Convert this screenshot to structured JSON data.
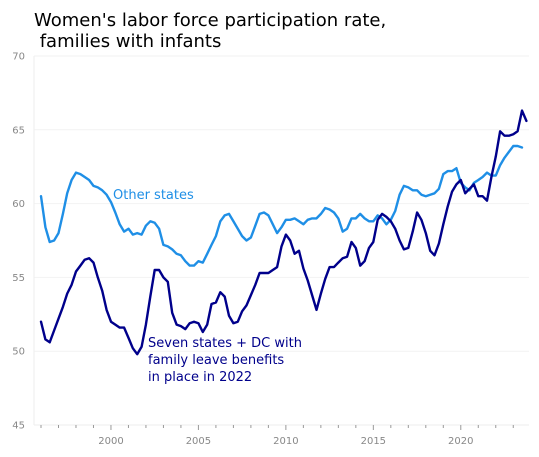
{
  "chart_data": {
    "type": "line",
    "title_lines": [
      "Women's labor force participation rate,",
      " families with infants"
    ],
    "xlabel": "",
    "ylabel": "",
    "xlim": [
      1995.6,
      2023.9
    ],
    "ylim": [
      45,
      70
    ],
    "y_ticks": [
      45,
      50,
      55,
      60,
      65,
      70
    ],
    "x_ticks": [
      2000,
      2005,
      2010,
      2015,
      2020
    ],
    "grid": true,
    "legend": "none",
    "series": [
      {
        "name": "Other states",
        "label": "Other states",
        "color": "#1f8fe6",
        "points": [
          [
            1996.0,
            60.5
          ],
          [
            1996.25,
            58.4
          ],
          [
            1996.5,
            57.4
          ],
          [
            1996.75,
            57.5
          ],
          [
            1997.0,
            58.0
          ],
          [
            1997.25,
            59.3
          ],
          [
            1997.5,
            60.7
          ],
          [
            1997.75,
            61.6
          ],
          [
            1998.0,
            62.1
          ],
          [
            1998.25,
            62.0
          ],
          [
            1998.5,
            61.8
          ],
          [
            1998.75,
            61.6
          ],
          [
            1999.0,
            61.2
          ],
          [
            1999.25,
            61.1
          ],
          [
            1999.5,
            60.9
          ],
          [
            1999.75,
            60.6
          ],
          [
            2000.0,
            60.1
          ],
          [
            2000.25,
            59.4
          ],
          [
            2000.5,
            58.6
          ],
          [
            2000.75,
            58.1
          ],
          [
            2001.0,
            58.3
          ],
          [
            2001.25,
            57.9
          ],
          [
            2001.5,
            58.0
          ],
          [
            2001.75,
            57.9
          ],
          [
            2002.0,
            58.5
          ],
          [
            2002.25,
            58.8
          ],
          [
            2002.5,
            58.7
          ],
          [
            2002.75,
            58.3
          ],
          [
            2003.0,
            57.2
          ],
          [
            2003.25,
            57.1
          ],
          [
            2003.5,
            56.9
          ],
          [
            2003.75,
            56.6
          ],
          [
            2004.0,
            56.5
          ],
          [
            2004.25,
            56.1
          ],
          [
            2004.5,
            55.8
          ],
          [
            2004.75,
            55.8
          ],
          [
            2005.0,
            56.1
          ],
          [
            2005.25,
            56.0
          ],
          [
            2005.5,
            56.6
          ],
          [
            2005.75,
            57.2
          ],
          [
            2006.0,
            57.8
          ],
          [
            2006.25,
            58.8
          ],
          [
            2006.5,
            59.2
          ],
          [
            2006.75,
            59.3
          ],
          [
            2007.0,
            58.8
          ],
          [
            2007.25,
            58.3
          ],
          [
            2007.5,
            57.8
          ],
          [
            2007.75,
            57.5
          ],
          [
            2008.0,
            57.7
          ],
          [
            2008.25,
            58.5
          ],
          [
            2008.5,
            59.3
          ],
          [
            2008.75,
            59.4
          ],
          [
            2009.0,
            59.2
          ],
          [
            2009.25,
            58.6
          ],
          [
            2009.5,
            58.0
          ],
          [
            2009.75,
            58.4
          ],
          [
            2010.0,
            58.9
          ],
          [
            2010.25,
            58.9
          ],
          [
            2010.5,
            59.0
          ],
          [
            2010.75,
            58.8
          ],
          [
            2011.0,
            58.6
          ],
          [
            2011.25,
            58.9
          ],
          [
            2011.5,
            59.0
          ],
          [
            2011.75,
            59.0
          ],
          [
            2012.0,
            59.3
          ],
          [
            2012.25,
            59.7
          ],
          [
            2012.5,
            59.6
          ],
          [
            2012.75,
            59.4
          ],
          [
            2013.0,
            59.0
          ],
          [
            2013.25,
            58.1
          ],
          [
            2013.5,
            58.3
          ],
          [
            2013.75,
            59.0
          ],
          [
            2014.0,
            59.0
          ],
          [
            2014.25,
            59.3
          ],
          [
            2014.5,
            59.0
          ],
          [
            2014.75,
            58.8
          ],
          [
            2015.0,
            58.8
          ],
          [
            2015.25,
            59.2
          ],
          [
            2015.5,
            59.0
          ],
          [
            2015.75,
            58.6
          ],
          [
            2016.0,
            58.9
          ],
          [
            2016.25,
            59.5
          ],
          [
            2016.5,
            60.6
          ],
          [
            2016.75,
            61.2
          ],
          [
            2017.0,
            61.1
          ],
          [
            2017.25,
            60.9
          ],
          [
            2017.5,
            60.9
          ],
          [
            2017.75,
            60.6
          ],
          [
            2018.0,
            60.5
          ],
          [
            2018.25,
            60.6
          ],
          [
            2018.5,
            60.7
          ],
          [
            2018.75,
            61.0
          ],
          [
            2019.0,
            62.0
          ],
          [
            2019.25,
            62.2
          ],
          [
            2019.5,
            62.2
          ],
          [
            2019.75,
            62.4
          ],
          [
            2020.0,
            61.4
          ],
          [
            2020.25,
            61.1
          ],
          [
            2020.5,
            60.9
          ],
          [
            2020.75,
            61.4
          ],
          [
            2021.0,
            61.6
          ],
          [
            2021.25,
            61.8
          ],
          [
            2021.5,
            62.1
          ],
          [
            2021.75,
            61.9
          ],
          [
            2022.0,
            61.9
          ],
          [
            2022.25,
            62.6
          ],
          [
            2022.5,
            63.1
          ],
          [
            2022.75,
            63.5
          ],
          [
            2023.0,
            63.9
          ],
          [
            2023.25,
            63.9
          ],
          [
            2023.5,
            63.8
          ]
        ]
      },
      {
        "name": "Seven states + DC with family leave benefits in place in 2022",
        "label_lines": [
          "Seven states + DC with",
          "family leave benefits",
          "in place in 2022"
        ],
        "color": "#00008b",
        "points": [
          [
            1996.0,
            52.0
          ],
          [
            1996.25,
            50.8
          ],
          [
            1996.5,
            50.6
          ],
          [
            1996.75,
            51.4
          ],
          [
            1997.0,
            52.2
          ],
          [
            1997.25,
            53.0
          ],
          [
            1997.5,
            53.9
          ],
          [
            1997.75,
            54.5
          ],
          [
            1998.0,
            55.4
          ],
          [
            1998.25,
            55.8
          ],
          [
            1998.5,
            56.2
          ],
          [
            1998.75,
            56.3
          ],
          [
            1999.0,
            56.0
          ],
          [
            1999.25,
            55.0
          ],
          [
            1999.5,
            54.1
          ],
          [
            1999.75,
            52.8
          ],
          [
            2000.0,
            52.0
          ],
          [
            2000.25,
            51.8
          ],
          [
            2000.5,
            51.6
          ],
          [
            2000.75,
            51.6
          ],
          [
            2001.0,
            50.9
          ],
          [
            2001.25,
            50.2
          ],
          [
            2001.5,
            49.8
          ],
          [
            2001.75,
            50.3
          ],
          [
            2002.0,
            51.8
          ],
          [
            2002.25,
            53.7
          ],
          [
            2002.5,
            55.5
          ],
          [
            2002.75,
            55.5
          ],
          [
            2003.0,
            55.0
          ],
          [
            2003.25,
            54.7
          ],
          [
            2003.5,
            52.6
          ],
          [
            2003.75,
            51.8
          ],
          [
            2004.0,
            51.7
          ],
          [
            2004.25,
            51.5
          ],
          [
            2004.5,
            51.9
          ],
          [
            2004.75,
            52.0
          ],
          [
            2005.0,
            51.9
          ],
          [
            2005.25,
            51.3
          ],
          [
            2005.5,
            51.8
          ],
          [
            2005.75,
            53.2
          ],
          [
            2006.0,
            53.3
          ],
          [
            2006.25,
            54.0
          ],
          [
            2006.5,
            53.7
          ],
          [
            2006.75,
            52.4
          ],
          [
            2007.0,
            51.9
          ],
          [
            2007.25,
            52.0
          ],
          [
            2007.5,
            52.7
          ],
          [
            2007.75,
            53.1
          ],
          [
            2008.0,
            53.8
          ],
          [
            2008.25,
            54.5
          ],
          [
            2008.5,
            55.3
          ],
          [
            2008.75,
            55.3
          ],
          [
            2009.0,
            55.3
          ],
          [
            2009.25,
            55.5
          ],
          [
            2009.5,
            55.7
          ],
          [
            2009.75,
            57.1
          ],
          [
            2010.0,
            57.9
          ],
          [
            2010.25,
            57.5
          ],
          [
            2010.5,
            56.6
          ],
          [
            2010.75,
            56.8
          ],
          [
            2011.0,
            55.6
          ],
          [
            2011.25,
            54.8
          ],
          [
            2011.5,
            53.8
          ],
          [
            2011.75,
            52.8
          ],
          [
            2012.0,
            53.9
          ],
          [
            2012.25,
            54.9
          ],
          [
            2012.5,
            55.7
          ],
          [
            2012.75,
            55.7
          ],
          [
            2013.0,
            56.0
          ],
          [
            2013.25,
            56.3
          ],
          [
            2013.5,
            56.4
          ],
          [
            2013.75,
            57.4
          ],
          [
            2014.0,
            57.0
          ],
          [
            2014.25,
            55.8
          ],
          [
            2014.5,
            56.1
          ],
          [
            2014.75,
            57.0
          ],
          [
            2015.0,
            57.4
          ],
          [
            2015.25,
            58.9
          ],
          [
            2015.5,
            59.3
          ],
          [
            2015.75,
            59.1
          ],
          [
            2016.0,
            58.8
          ],
          [
            2016.25,
            58.3
          ],
          [
            2016.5,
            57.5
          ],
          [
            2016.75,
            56.9
          ],
          [
            2017.0,
            57.0
          ],
          [
            2017.25,
            58.1
          ],
          [
            2017.5,
            59.4
          ],
          [
            2017.75,
            58.9
          ],
          [
            2018.0,
            58.0
          ],
          [
            2018.25,
            56.8
          ],
          [
            2018.5,
            56.5
          ],
          [
            2018.75,
            57.3
          ],
          [
            2019.0,
            58.6
          ],
          [
            2019.25,
            59.8
          ],
          [
            2019.5,
            60.8
          ],
          [
            2019.75,
            61.3
          ],
          [
            2020.0,
            61.6
          ],
          [
            2020.25,
            60.7
          ],
          [
            2020.5,
            61.0
          ],
          [
            2020.75,
            61.3
          ],
          [
            2021.0,
            60.5
          ],
          [
            2021.25,
            60.5
          ],
          [
            2021.5,
            60.2
          ],
          [
            2021.75,
            61.8
          ],
          [
            2022.0,
            63.2
          ],
          [
            2022.25,
            64.9
          ],
          [
            2022.5,
            64.6
          ],
          [
            2022.75,
            64.6
          ],
          [
            2023.0,
            64.7
          ],
          [
            2023.25,
            64.9
          ],
          [
            2023.5,
            66.3
          ],
          [
            2023.75,
            65.6
          ]
        ]
      }
    ]
  }
}
